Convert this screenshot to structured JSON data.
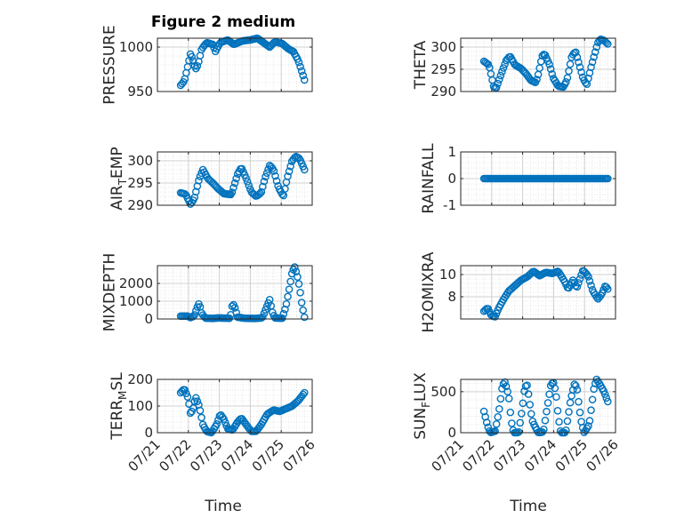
{
  "figure": {
    "title": "Figure 2 medium",
    "xlabel": "Time"
  },
  "colors": {
    "marker": "#0072BD",
    "axis": "#262626",
    "grid": "#DFDFDF",
    "background": "#FFFFFF"
  },
  "chart_data": [
    {
      "type": "scatter",
      "title": "Figure 2 medium",
      "ylabel": "PRESSURE",
      "xlim": [
        "07/21",
        "07/26"
      ],
      "xticks": [
        "07/21",
        "07/22",
        "07/23",
        "07/24",
        "07/25",
        "07/26"
      ],
      "ylim": [
        950,
        1010
      ],
      "yticks": [
        950,
        1000
      ],
      "grid": "on",
      "series_shape": {
        "x_start": "07/21 18:00",
        "x_end": "07/25 18:00",
        "points": 90
      },
      "y_keyframes": [
        [
          0,
          957
        ],
        [
          0.03,
          962
        ],
        [
          0.06,
          980
        ],
        [
          0.08,
          993
        ],
        [
          0.1,
          985
        ],
        [
          0.12,
          975
        ],
        [
          0.14,
          980
        ],
        [
          0.17,
          998
        ],
        [
          0.21,
          1005
        ],
        [
          0.26,
          1003
        ],
        [
          0.28,
          995
        ],
        [
          0.32,
          1005
        ],
        [
          0.38,
          1008
        ],
        [
          0.43,
          1003
        ],
        [
          0.5,
          1007
        ],
        [
          0.56,
          1008
        ],
        [
          0.62,
          1010
        ],
        [
          0.68,
          1004
        ],
        [
          0.72,
          1000
        ],
        [
          0.76,
          1006
        ],
        [
          0.82,
          1004
        ],
        [
          0.87,
          998
        ],
        [
          0.91,
          995
        ],
        [
          0.95,
          985
        ],
        [
          0.98,
          972
        ],
        [
          1,
          963
        ]
      ]
    },
    {
      "type": "scatter",
      "ylabel": "THETA",
      "xlim": [
        "07/21",
        "07/26"
      ],
      "xticks": [
        "07/21",
        "07/22",
        "07/23",
        "07/24",
        "07/25",
        "07/26"
      ],
      "ylim": [
        290,
        302
      ],
      "yticks": [
        290,
        295,
        300
      ],
      "grid": "on",
      "series_shape": {
        "x_start": "07/21 18:00",
        "x_end": "07/25 18:00",
        "points": 90
      },
      "y_keyframes": [
        [
          0,
          296.8
        ],
        [
          0.04,
          296
        ],
        [
          0.08,
          291
        ],
        [
          0.1,
          290.8
        ],
        [
          0.14,
          294
        ],
        [
          0.18,
          297
        ],
        [
          0.21,
          298
        ],
        [
          0.25,
          296
        ],
        [
          0.3,
          295.2
        ],
        [
          0.34,
          294
        ],
        [
          0.38,
          292.5
        ],
        [
          0.42,
          292
        ],
        [
          0.44,
          294
        ],
        [
          0.47,
          298
        ],
        [
          0.49,
          298.5
        ],
        [
          0.53,
          296
        ],
        [
          0.56,
          293
        ],
        [
          0.6,
          291.2
        ],
        [
          0.64,
          291
        ],
        [
          0.67,
          292.5
        ],
        [
          0.71,
          298
        ],
        [
          0.74,
          299
        ],
        [
          0.77,
          296
        ],
        [
          0.8,
          293
        ],
        [
          0.83,
          291.5
        ],
        [
          0.87,
          296
        ],
        [
          0.92,
          301
        ],
        [
          0.94,
          301.8
        ],
        [
          0.97,
          301.5
        ],
        [
          1,
          300.7
        ]
      ]
    },
    {
      "type": "scatter",
      "ylabel": "AIR_TEMP",
      "xlim": [
        "07/21",
        "07/26"
      ],
      "xticks": [
        "07/21",
        "07/22",
        "07/23",
        "07/24",
        "07/25",
        "07/26"
      ],
      "ylim": [
        290,
        302
      ],
      "yticks": [
        290,
        295,
        300
      ],
      "grid": "on",
      "series_shape": {
        "x_start": "07/21 18:00",
        "x_end": "07/25 18:00",
        "points": 90
      },
      "y_keyframes": [
        [
          0,
          292.8
        ],
        [
          0.04,
          292.5
        ],
        [
          0.08,
          290.2
        ],
        [
          0.11,
          291.5
        ],
        [
          0.15,
          296
        ],
        [
          0.18,
          298
        ],
        [
          0.22,
          296
        ],
        [
          0.26,
          295
        ],
        [
          0.3,
          293.8
        ],
        [
          0.35,
          292.6
        ],
        [
          0.41,
          292.4
        ],
        [
          0.46,
          297
        ],
        [
          0.49,
          298.5
        ],
        [
          0.53,
          296
        ],
        [
          0.57,
          293
        ],
        [
          0.61,
          292
        ],
        [
          0.65,
          292.8
        ],
        [
          0.68,
          296
        ],
        [
          0.72,
          299
        ],
        [
          0.75,
          298
        ],
        [
          0.79,
          294
        ],
        [
          0.83,
          292
        ],
        [
          0.86,
          296
        ],
        [
          0.9,
          300
        ],
        [
          0.93,
          301
        ],
        [
          0.96,
          300.5
        ],
        [
          1,
          298
        ]
      ]
    },
    {
      "type": "scatter",
      "ylabel": "RAINFALL",
      "xlim": [
        "07/21",
        "07/26"
      ],
      "xticks": [
        "07/21",
        "07/22",
        "07/23",
        "07/24",
        "07/25",
        "07/26"
      ],
      "ylim": [
        -1,
        1
      ],
      "yticks": [
        -1,
        0,
        1
      ],
      "grid": "on",
      "series_shape": {
        "x_start": "07/21 18:00",
        "x_end": "07/25 18:00",
        "points": 90
      },
      "y_keyframes": [
        [
          0,
          0
        ],
        [
          1,
          0
        ]
      ]
    },
    {
      "type": "scatter",
      "ylabel": "MIXDEPTH",
      "xlim": [
        "07/21",
        "07/26"
      ],
      "xticks": [
        "07/21",
        "07/22",
        "07/23",
        "07/24",
        "07/25",
        "07/26"
      ],
      "ylim": [
        0,
        3000
      ],
      "yticks": [
        0,
        1000,
        2000
      ],
      "grid": "on",
      "series_shape": {
        "x_start": "07/21 18:00",
        "x_end": "07/25 18:00",
        "points": 90
      },
      "y_keyframes": [
        [
          0,
          160
        ],
        [
          0.06,
          160
        ],
        [
          0.08,
          70
        ],
        [
          0.11,
          180
        ],
        [
          0.13,
          600
        ],
        [
          0.15,
          900
        ],
        [
          0.17,
          300
        ],
        [
          0.2,
          50
        ],
        [
          0.26,
          30
        ],
        [
          0.3,
          60
        ],
        [
          0.35,
          50
        ],
        [
          0.4,
          40
        ],
        [
          0.42,
          900
        ],
        [
          0.44,
          600
        ],
        [
          0.46,
          100
        ],
        [
          0.52,
          40
        ],
        [
          0.6,
          30
        ],
        [
          0.66,
          60
        ],
        [
          0.69,
          600
        ],
        [
          0.72,
          1100
        ],
        [
          0.74,
          400
        ],
        [
          0.76,
          60
        ],
        [
          0.82,
          40
        ],
        [
          0.85,
          700
        ],
        [
          0.88,
          1800
        ],
        [
          0.9,
          2600
        ],
        [
          0.92,
          2950
        ],
        [
          0.94,
          2500
        ],
        [
          0.96,
          1800
        ],
        [
          0.98,
          800
        ],
        [
          1,
          100
        ]
      ]
    },
    {
      "type": "scatter",
      "ylabel": "H2OMIXRA",
      "xlim": [
        "07/21",
        "07/26"
      ],
      "xticks": [
        "07/21",
        "07/22",
        "07/23",
        "07/24",
        "07/25",
        "07/26"
      ],
      "ylim": [
        6,
        10.8
      ],
      "yticks": [
        8,
        10
      ],
      "grid": "on",
      "series_shape": {
        "x_start": "07/21 18:00",
        "x_end": "07/25 18:00",
        "points": 90
      },
      "y_keyframes": [
        [
          0,
          6.7
        ],
        [
          0.03,
          7
        ],
        [
          0.06,
          6.3
        ],
        [
          0.09,
          6.2
        ],
        [
          0.12,
          7
        ],
        [
          0.16,
          7.8
        ],
        [
          0.2,
          8.5
        ],
        [
          0.25,
          9
        ],
        [
          0.3,
          9.5
        ],
        [
          0.35,
          9.8
        ],
        [
          0.4,
          10.3
        ],
        [
          0.45,
          9.9
        ],
        [
          0.5,
          10.2
        ],
        [
          0.55,
          10.1
        ],
        [
          0.6,
          10.3
        ],
        [
          0.65,
          9.4
        ],
        [
          0.68,
          8.7
        ],
        [
          0.72,
          9.5
        ],
        [
          0.75,
          8.8
        ],
        [
          0.8,
          10.4
        ],
        [
          0.84,
          9.9
        ],
        [
          0.88,
          8.5
        ],
        [
          0.92,
          7.8
        ],
        [
          0.95,
          8.2
        ],
        [
          0.98,
          9
        ],
        [
          1,
          8.7
        ]
      ]
    },
    {
      "type": "scatter",
      "ylabel": "TERR_MSL",
      "xlim": [
        "07/21",
        "07/26"
      ],
      "xticks": [
        "07/21",
        "07/22",
        "07/23",
        "07/24",
        "07/25",
        "07/26"
      ],
      "ylim": [
        0,
        200
      ],
      "yticks": [
        0,
        100,
        200
      ],
      "grid": "on",
      "series_shape": {
        "x_start": "07/21 18:00",
        "x_end": "07/25 18:00",
        "points": 90
      },
      "y_keyframes": [
        [
          0,
          150
        ],
        [
          0.03,
          165
        ],
        [
          0.06,
          130
        ],
        [
          0.08,
          70
        ],
        [
          0.1,
          90
        ],
        [
          0.12,
          135
        ],
        [
          0.15,
          100
        ],
        [
          0.18,
          30
        ],
        [
          0.21,
          5
        ],
        [
          0.25,
          0
        ],
        [
          0.29,
          30
        ],
        [
          0.32,
          70
        ],
        [
          0.35,
          50
        ],
        [
          0.38,
          15
        ],
        [
          0.42,
          10
        ],
        [
          0.46,
          40
        ],
        [
          0.49,
          55
        ],
        [
          0.53,
          30
        ],
        [
          0.57,
          5
        ],
        [
          0.61,
          5
        ],
        [
          0.65,
          30
        ],
        [
          0.7,
          70
        ],
        [
          0.75,
          85
        ],
        [
          0.8,
          80
        ],
        [
          0.85,
          90
        ],
        [
          0.9,
          100
        ],
        [
          0.95,
          120
        ],
        [
          1,
          150
        ]
      ]
    },
    {
      "type": "scatter",
      "ylabel": "SUN_FLUX",
      "xlim": [
        "07/21",
        "07/26"
      ],
      "xticks": [
        "07/21",
        "07/22",
        "07/23",
        "07/24",
        "07/25",
        "07/26"
      ],
      "ylim": [
        0,
        650
      ],
      "yticks": [
        0,
        500
      ],
      "grid": "on",
      "series_shape": {
        "x_start": "07/21 18:00",
        "x_end": "07/25 18:00",
        "points": 90
      },
      "y_keyframes": [
        [
          0,
          260
        ],
        [
          0.03,
          80
        ],
        [
          0.05,
          0
        ],
        [
          0.09,
          20
        ],
        [
          0.12,
          250
        ],
        [
          0.15,
          580
        ],
        [
          0.17,
          620
        ],
        [
          0.2,
          450
        ],
        [
          0.22,
          150
        ],
        [
          0.24,
          0
        ],
        [
          0.28,
          0
        ],
        [
          0.31,
          300
        ],
        [
          0.33,
          560
        ],
        [
          0.35,
          580
        ],
        [
          0.37,
          350
        ],
        [
          0.39,
          150
        ],
        [
          0.41,
          80
        ],
        [
          0.44,
          0
        ],
        [
          0.48,
          10
        ],
        [
          0.51,
          300
        ],
        [
          0.54,
          580
        ],
        [
          0.56,
          620
        ],
        [
          0.58,
          500
        ],
        [
          0.6,
          200
        ],
        [
          0.62,
          0
        ],
        [
          0.66,
          0
        ],
        [
          0.7,
          400
        ],
        [
          0.73,
          590
        ],
        [
          0.75,
          560
        ],
        [
          0.77,
          300
        ],
        [
          0.79,
          100
        ],
        [
          0.81,
          0
        ],
        [
          0.85,
          100
        ],
        [
          0.89,
          560
        ],
        [
          0.91,
          650
        ],
        [
          0.94,
          580
        ],
        [
          0.97,
          500
        ],
        [
          1,
          380
        ]
      ]
    }
  ]
}
